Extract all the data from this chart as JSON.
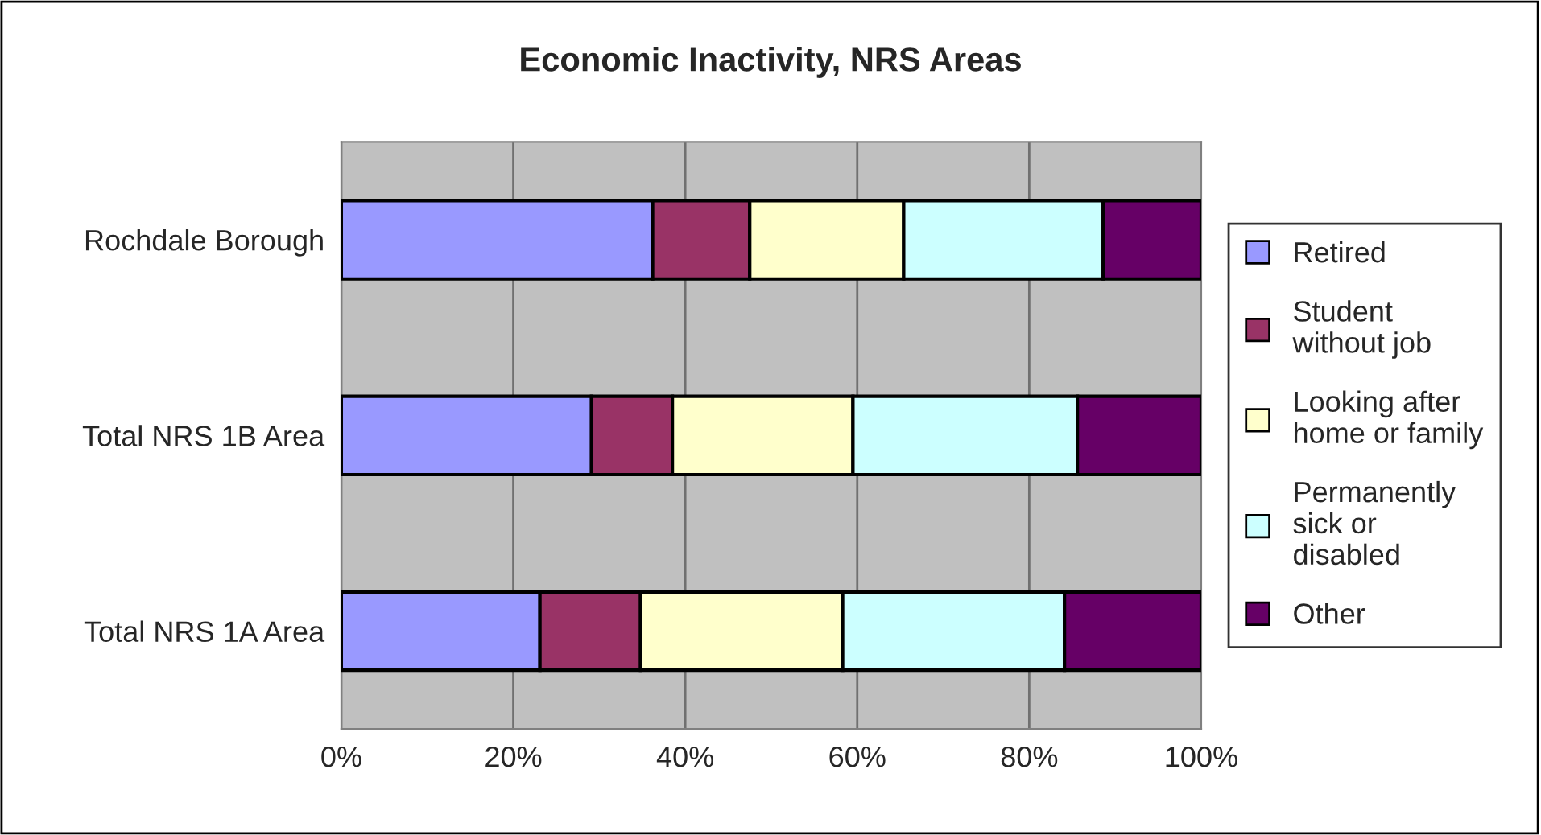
{
  "chart_data": {
    "type": "bar",
    "orientation": "horizontal",
    "stacked": true,
    "title": "Economic Inactivity, NRS Areas",
    "categories": [
      "Rochdale Borough",
      "Total NRS 1B Area",
      "Total NRS 1A Area"
    ],
    "series": [
      {
        "name": "Retired",
        "color": "#9999ff",
        "values": [
          36.2,
          29.1,
          23.1
        ]
      },
      {
        "name": "Student\nwithout job",
        "color": "#993366",
        "values": [
          11.3,
          9.4,
          11.7
        ]
      },
      {
        "name": "Looking after\nhome or family",
        "color": "#ffffcc",
        "values": [
          17.9,
          21.0,
          23.5
        ]
      },
      {
        "name": "Permanently\nsick or\ndisabled",
        "color": "#ccffff",
        "values": [
          23.2,
          26.1,
          25.8
        ]
      },
      {
        "name": "Other",
        "color": "#660066",
        "values": [
          11.4,
          14.4,
          15.9
        ]
      }
    ],
    "xlim": [
      0,
      100
    ],
    "xticks": [
      {
        "value": 0,
        "label": "0%"
      },
      {
        "value": 20,
        "label": "20%"
      },
      {
        "value": 40,
        "label": "40%"
      },
      {
        "value": 60,
        "label": "60%"
      },
      {
        "value": 80,
        "label": "80%"
      },
      {
        "value": 100,
        "label": "100%"
      }
    ],
    "grid": "x",
    "legend": "right"
  }
}
